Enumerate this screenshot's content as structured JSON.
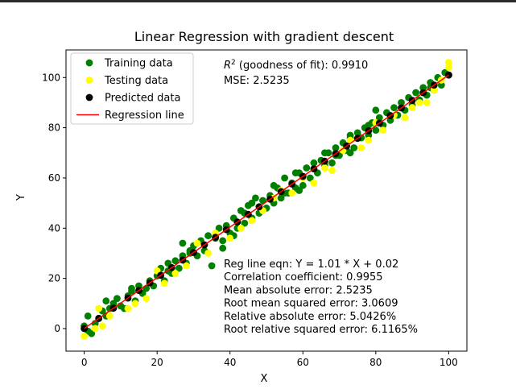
{
  "chart_data": {
    "type": "scatter",
    "title": "Linear Regression with gradient descent",
    "xlabel": "X",
    "ylabel": "Y",
    "xlim": [
      -5,
      105
    ],
    "ylim": [
      -9,
      111
    ],
    "xticks": [
      0,
      20,
      40,
      60,
      80,
      100
    ],
    "yticks": [
      0,
      20,
      40,
      60,
      80,
      100
    ],
    "grid": false,
    "legend_position": "top-left",
    "legend": [
      {
        "label": "Training data",
        "kind": "marker",
        "color": "#008000"
      },
      {
        "label": "Testing data",
        "kind": "marker",
        "color": "#ffff00"
      },
      {
        "label": "Predicted data",
        "kind": "marker",
        "color": "#000000"
      },
      {
        "label": "Regression line",
        "kind": "line",
        "color": "#ff0000"
      }
    ],
    "annotations_top": {
      "r2_prefix": "R",
      "r2_sup": "2",
      "r2_rest": " (goodness of fit): 0.9910",
      "mse": "MSE: 2.5235"
    },
    "annotations_bottom": [
      "Reg line eqn: Y = 1.01 * X + 0.02",
      "Correlation coefficient: 0.9955",
      "Mean absolute error: 2.5235",
      "Root mean squared error: 3.0609",
      "Relative absolute error: 5.0426%",
      "Root relative squared error: 6.1165%"
    ],
    "regression_line": {
      "slope": 1.01,
      "intercept": 0.02,
      "x_range": [
        0,
        100
      ]
    },
    "series": [
      {
        "name": "Training data",
        "color": "#008000",
        "points": [
          [
            0,
            1
          ],
          [
            1,
            5
          ],
          [
            1,
            -1
          ],
          [
            2,
            -2
          ],
          [
            3,
            2
          ],
          [
            4,
            4
          ],
          [
            5,
            7
          ],
          [
            6,
            11
          ],
          [
            6,
            5
          ],
          [
            7,
            8
          ],
          [
            8,
            10
          ],
          [
            9,
            12
          ],
          [
            10,
            9
          ],
          [
            11,
            8
          ],
          [
            12,
            13
          ],
          [
            13,
            15
          ],
          [
            14,
            11
          ],
          [
            15,
            17
          ],
          [
            16,
            14
          ],
          [
            17,
            16
          ],
          [
            18,
            19
          ],
          [
            19,
            17
          ],
          [
            20,
            21
          ],
          [
            21,
            24
          ],
          [
            22,
            19
          ],
          [
            23,
            26
          ],
          [
            24,
            22
          ],
          [
            25,
            27
          ],
          [
            26,
            24
          ],
          [
            27,
            29
          ],
          [
            28,
            26
          ],
          [
            29,
            31
          ],
          [
            30,
            33
          ],
          [
            31,
            29
          ],
          [
            32,
            35
          ],
          [
            33,
            31
          ],
          [
            34,
            37
          ],
          [
            35,
            25
          ],
          [
            36,
            36
          ],
          [
            37,
            40
          ],
          [
            38,
            35
          ],
          [
            39,
            41
          ],
          [
            40,
            38
          ],
          [
            41,
            44
          ],
          [
            42,
            40
          ],
          [
            43,
            47
          ],
          [
            44,
            42
          ],
          [
            45,
            49
          ],
          [
            46,
            44
          ],
          [
            47,
            52
          ],
          [
            48,
            46
          ],
          [
            49,
            51
          ],
          [
            50,
            48
          ],
          [
            51,
            53
          ],
          [
            52,
            50
          ],
          [
            53,
            56
          ],
          [
            54,
            52
          ],
          [
            55,
            60
          ],
          [
            56,
            54
          ],
          [
            57,
            58
          ],
          [
            58,
            56
          ],
          [
            59,
            62
          ],
          [
            60,
            57
          ],
          [
            61,
            64
          ],
          [
            62,
            60
          ],
          [
            63,
            66
          ],
          [
            64,
            62
          ],
          [
            65,
            67
          ],
          [
            66,
            65
          ],
          [
            67,
            70
          ],
          [
            68,
            66
          ],
          [
            69,
            72
          ],
          [
            70,
            69
          ],
          [
            71,
            74
          ],
          [
            72,
            71
          ],
          [
            73,
            76
          ],
          [
            74,
            72
          ],
          [
            75,
            78
          ],
          [
            76,
            76
          ],
          [
            77,
            80
          ],
          [
            78,
            77
          ],
          [
            79,
            82
          ],
          [
            80,
            79
          ],
          [
            81,
            84
          ],
          [
            82,
            81
          ],
          [
            83,
            86
          ],
          [
            84,
            83
          ],
          [
            85,
            88
          ],
          [
            86,
            85
          ],
          [
            87,
            90
          ],
          [
            88,
            87
          ],
          [
            89,
            92
          ],
          [
            90,
            89
          ],
          [
            91,
            94
          ],
          [
            92,
            91
          ],
          [
            93,
            96
          ],
          [
            94,
            93
          ],
          [
            95,
            98
          ],
          [
            96,
            95
          ],
          [
            97,
            100
          ],
          [
            98,
            97
          ],
          [
            99,
            102
          ],
          [
            100,
            101
          ],
          [
            73,
            77
          ],
          [
            73,
            70
          ],
          [
            80,
            87
          ],
          [
            66,
            70
          ],
          [
            59,
            55
          ],
          [
            38,
            32
          ],
          [
            27,
            34
          ],
          [
            41,
            37
          ],
          [
            52,
            57
          ],
          [
            23,
            23
          ],
          [
            58,
            62
          ],
          [
            13,
            16
          ],
          [
            29,
            30
          ],
          [
            55,
            54
          ],
          [
            69,
            69
          ],
          [
            46,
            50
          ],
          [
            44,
            46
          ],
          [
            78,
            81
          ],
          [
            95,
            96
          ]
        ]
      },
      {
        "name": "Testing data",
        "color": "#ffff00",
        "points": [
          [
            0,
            -3
          ],
          [
            3,
            0
          ],
          [
            4,
            8
          ],
          [
            5,
            1
          ],
          [
            7,
            5
          ],
          [
            12,
            8
          ],
          [
            14,
            10
          ],
          [
            17,
            12
          ],
          [
            20,
            23
          ],
          [
            22,
            18
          ],
          [
            25,
            22
          ],
          [
            28,
            25
          ],
          [
            31,
            34
          ],
          [
            34,
            30
          ],
          [
            36,
            38
          ],
          [
            40,
            36
          ],
          [
            43,
            40
          ],
          [
            46,
            43
          ],
          [
            49,
            47
          ],
          [
            52,
            52
          ],
          [
            54,
            55
          ],
          [
            57,
            54
          ],
          [
            60,
            60
          ],
          [
            63,
            58
          ],
          [
            66,
            64
          ],
          [
            68,
            63
          ],
          [
            71,
            71
          ],
          [
            73,
            75
          ],
          [
            76,
            72
          ],
          [
            78,
            75
          ],
          [
            80,
            82
          ],
          [
            82,
            79
          ],
          [
            85,
            85
          ],
          [
            88,
            84
          ],
          [
            90,
            88
          ],
          [
            92,
            90
          ],
          [
            94,
            90
          ],
          [
            96,
            95
          ],
          [
            98,
            99
          ],
          [
            100,
            104
          ],
          [
            100,
            106
          ]
        ]
      },
      {
        "name": "Predicted data",
        "color": "#000000",
        "points": [
          [
            0,
            0.02
          ],
          [
            4,
            4.06
          ],
          [
            8,
            8.1
          ],
          [
            12,
            12.14
          ],
          [
            15,
            15.17
          ],
          [
            18,
            18.2
          ],
          [
            21,
            21.23
          ],
          [
            24,
            24.26
          ],
          [
            27,
            27.29
          ],
          [
            30,
            30.32
          ],
          [
            33,
            33.35
          ],
          [
            36,
            36.38
          ],
          [
            39,
            39.41
          ],
          [
            42,
            42.44
          ],
          [
            45,
            45.47
          ],
          [
            48,
            48.5
          ],
          [
            51,
            51.53
          ],
          [
            54,
            54.56
          ],
          [
            57,
            57.59
          ],
          [
            60,
            60.62
          ],
          [
            63,
            63.65
          ],
          [
            66,
            66.68
          ],
          [
            69,
            69.71
          ],
          [
            72,
            72.74
          ],
          [
            75,
            75.77
          ],
          [
            78,
            78.8
          ],
          [
            81,
            81.83
          ],
          [
            84,
            84.86
          ],
          [
            87,
            87.89
          ],
          [
            90,
            90.92
          ],
          [
            93,
            93.95
          ],
          [
            96,
            96.98
          ],
          [
            100,
            101.02
          ]
        ]
      }
    ]
  }
}
